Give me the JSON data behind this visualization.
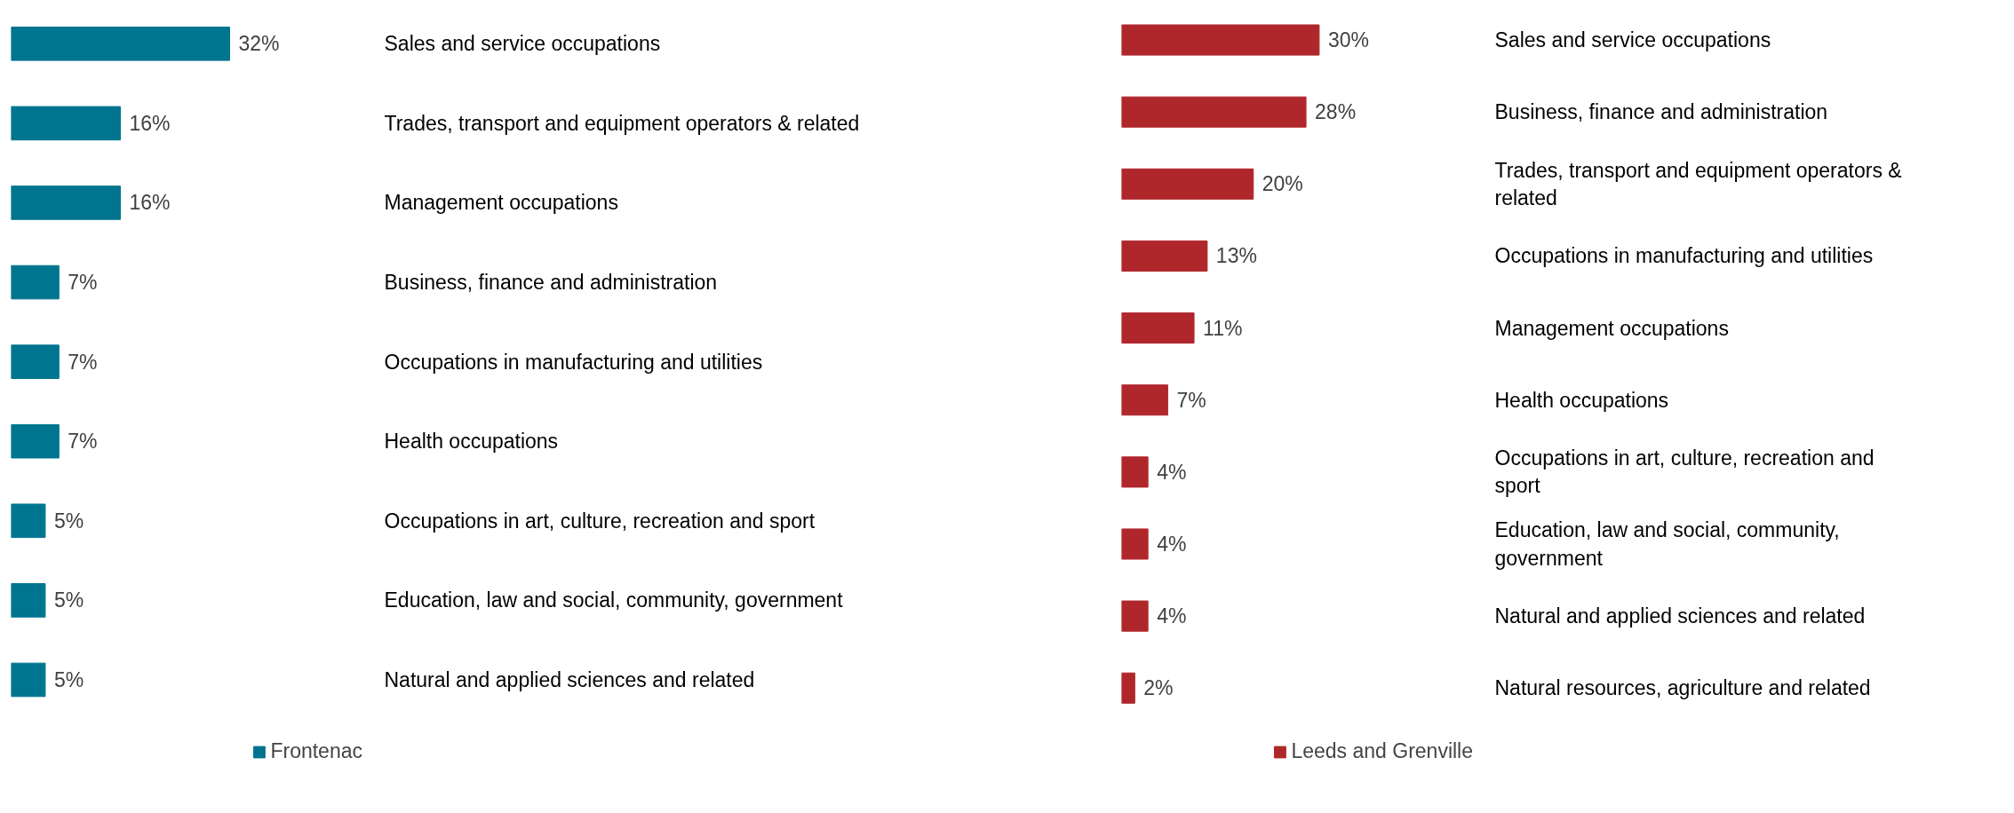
{
  "chart_data": [
    {
      "type": "bar",
      "orientation": "horizontal",
      "legend": "bottom",
      "categories": [
        "Sales and service occupations",
        "Trades, transport and equipment operators & related",
        "Management occupations",
        "Business, finance and administration",
        "Occupations in manufacturing and utilities",
        "Health occupations",
        "Occupations in art, culture, recreation and sport",
        "Education, law and social, community,  government",
        "Natural and applied sciences and related"
      ],
      "series": [
        {
          "name": "Frontenac",
          "color": "#00758f",
          "values": [
            32,
            16,
            16,
            7,
            7,
            7,
            5,
            5,
            5
          ],
          "value_labels": [
            "32%",
            "16%",
            "16%",
            "7%",
            "7%",
            "7%",
            "5%",
            "5%",
            "5%"
          ]
        }
      ]
    },
    {
      "type": "bar",
      "orientation": "horizontal",
      "legend": "bottom",
      "categories": [
        "Sales and service occupations",
        "Business, finance and administration",
        "Trades, transport and equipment operators & related",
        "Occupations in manufacturing and utilities",
        "Management occupations",
        "Health occupations",
        "Occupations in art, culture, recreation and sport",
        "Education, law and social, community, government",
        "Natural and applied sciences and related",
        "Natural resources, agriculture and related"
      ],
      "series": [
        {
          "name": "Leeds and Grenville",
          "color": "#b0272b",
          "values": [
            30,
            28,
            20,
            13,
            11,
            7,
            4,
            4,
            4,
            2
          ],
          "value_labels": [
            "30%",
            "28%",
            "20%",
            "13%",
            "11%",
            "7%",
            "4%",
            "4%",
            "4%",
            "2%"
          ]
        }
      ]
    }
  ]
}
